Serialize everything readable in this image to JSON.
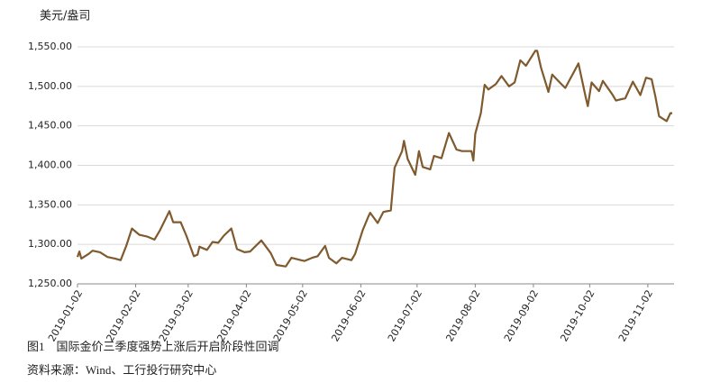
{
  "chart_data": {
    "type": "line",
    "y_label": "美元/盎司",
    "caption": "图1　国际金价三季度强势上涨后开启阶段性回调",
    "source": "资料来源：Wind、工行投行研究中心",
    "color": "#7f5a2e",
    "grid": true,
    "x": [
      "2019-01-02",
      "2019-01-03",
      "2019-01-04",
      "2019-01-08",
      "2019-01-10",
      "2019-01-14",
      "2019-01-18",
      "2019-01-22",
      "2019-01-25",
      "2019-01-28",
      "2019-01-31",
      "2019-02-04",
      "2019-02-08",
      "2019-02-12",
      "2019-02-15",
      "2019-02-20",
      "2019-02-22",
      "2019-02-26",
      "2019-03-01",
      "2019-03-05",
      "2019-03-07",
      "2019-03-08",
      "2019-03-12",
      "2019-03-15",
      "2019-03-18",
      "2019-03-21",
      "2019-03-25",
      "2019-03-28",
      "2019-04-01",
      "2019-04-04",
      "2019-04-10",
      "2019-04-15",
      "2019-04-18",
      "2019-04-23",
      "2019-04-26",
      "2019-05-01",
      "2019-05-03",
      "2019-05-07",
      "2019-05-10",
      "2019-05-14",
      "2019-05-16",
      "2019-05-20",
      "2019-05-23",
      "2019-05-28",
      "2019-05-30",
      "2019-06-03",
      "2019-06-06",
      "2019-06-07",
      "2019-06-11",
      "2019-06-14",
      "2019-06-18",
      "2019-06-20",
      "2019-06-24",
      "2019-06-25",
      "2019-06-27",
      "2019-07-01",
      "2019-07-03",
      "2019-07-05",
      "2019-07-09",
      "2019-07-11",
      "2019-07-15",
      "2019-07-19",
      "2019-07-23",
      "2019-07-26",
      "2019-07-31",
      "2019-08-01",
      "2019-08-02",
      "2019-08-05",
      "2019-08-07",
      "2019-08-09",
      "2019-08-13",
      "2019-08-16",
      "2019-08-20",
      "2019-08-23",
      "2019-08-26",
      "2019-08-29",
      "2019-09-03",
      "2019-09-04",
      "2019-09-06",
      "2019-09-10",
      "2019-09-12",
      "2019-09-16",
      "2019-09-19",
      "2019-09-24",
      "2019-09-26",
      "2019-09-30",
      "2019-10-01",
      "2019-10-03",
      "2019-10-07",
      "2019-10-09",
      "2019-10-14",
      "2019-10-16",
      "2019-10-21",
      "2019-10-25",
      "2019-10-29",
      "2019-11-01",
      "2019-11-04",
      "2019-11-06",
      "2019-11-08",
      "2019-11-12",
      "2019-11-14",
      "2019-11-15"
    ],
    "values": [
      1284,
      1291,
      1282,
      1288,
      1292,
      1290,
      1284,
      1282,
      1280,
      1298,
      1320,
      1312,
      1310,
      1306,
      1318,
      1342,
      1328,
      1328,
      1311,
      1285,
      1287,
      1297,
      1293,
      1303,
      1302,
      1311,
      1320,
      1294,
      1290,
      1291,
      1305,
      1289,
      1274,
      1272,
      1283,
      1280,
      1279,
      1283,
      1285,
      1298,
      1283,
      1276,
      1283,
      1280,
      1288,
      1318,
      1335,
      1340,
      1327,
      1341,
      1343,
      1397,
      1418,
      1431,
      1408,
      1388,
      1418,
      1398,
      1395,
      1412,
      1409,
      1441,
      1420,
      1418,
      1418,
      1406,
      1440,
      1466,
      1502,
      1496,
      1503,
      1513,
      1500,
      1505,
      1533,
      1526,
      1545,
      1545,
      1524,
      1493,
      1515,
      1505,
      1498,
      1520,
      1529,
      1485,
      1475,
      1505,
      1494,
      1507,
      1490,
      1482,
      1485,
      1506,
      1489,
      1511,
      1509,
      1487,
      1462,
      1456,
      1466,
      1466
    ],
    "xlim": [
      "2019-01-02",
      "2019-11-15"
    ],
    "xticks": [
      "2019-01-02",
      "2019-02-02",
      "2019-03-02",
      "2019-04-02",
      "2019-05-02",
      "2019-06-02",
      "2019-07-02",
      "2019-08-02",
      "2019-09-02",
      "2019-10-02",
      "2019-11-02"
    ],
    "ylim": [
      1250,
      1550
    ],
    "yticks": [
      {
        "value": 1250,
        "label": "1,250.00"
      },
      {
        "value": 1300,
        "label": "1,300.00"
      },
      {
        "value": 1350,
        "label": "1,350.00"
      },
      {
        "value": 1400,
        "label": "1,400.00"
      },
      {
        "value": 1450,
        "label": "1,450.00"
      },
      {
        "value": 1500,
        "label": "1,500.00"
      },
      {
        "value": 1550,
        "label": "1,550.00"
      }
    ]
  }
}
